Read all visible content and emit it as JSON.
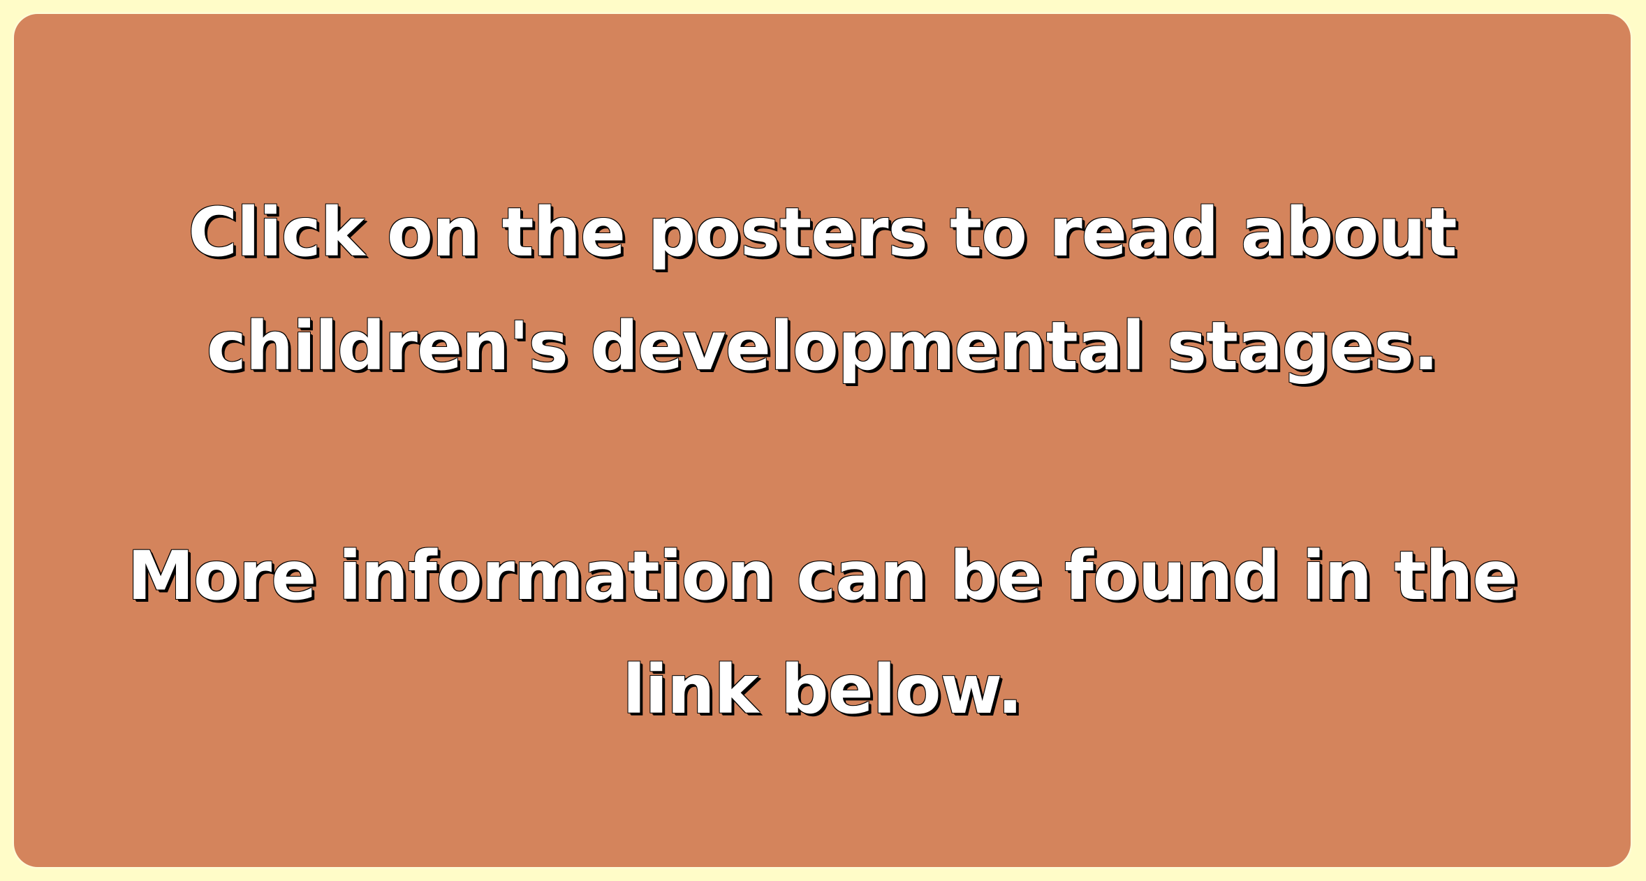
{
  "colors": {
    "outer_background": "#fffcc8",
    "panel_background": "#d4845c",
    "text": "#ffffff",
    "text_shadow": "#000000"
  },
  "messages": [
    {
      "lines": [
        "Click on the posters to read about",
        "children's developmental stages."
      ]
    },
    {
      "lines": [
        "More information can be found in the",
        "link below."
      ]
    }
  ]
}
